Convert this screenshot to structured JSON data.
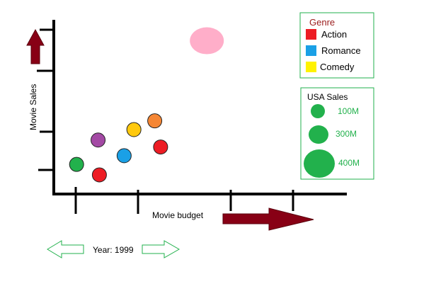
{
  "chart_data": {
    "type": "scatter",
    "title": "",
    "xlabel": "Movie budget",
    "ylabel": "Movie Sales",
    "xlim": [
      0,
      4.5
    ],
    "ylim": [
      0,
      5
    ],
    "points": [
      {
        "x": 0.35,
        "y": 0.85,
        "color": "#22b14c",
        "size": "small"
      },
      {
        "x": 0.7,
        "y": 0.55,
        "color": "#ed1c24",
        "size": "small"
      },
      {
        "x": 0.68,
        "y": 1.55,
        "color": "#a349a4",
        "size": "small"
      },
      {
        "x": 1.08,
        "y": 1.1,
        "color": "#1aa0e6",
        "size": "small"
      },
      {
        "x": 1.23,
        "y": 1.85,
        "color": "#ffc90e",
        "size": "small"
      },
      {
        "x": 1.55,
        "y": 2.1,
        "color": "#f58634",
        "size": "small"
      },
      {
        "x": 1.64,
        "y": 1.35,
        "color": "#ed1c24",
        "size": "small"
      },
      {
        "x": 2.35,
        "y": 4.4,
        "color": "#ffaec9",
        "size": "large"
      }
    ],
    "color_legend": {
      "title": "Genre",
      "items": [
        {
          "label": "Action",
          "color": "#ed1c24"
        },
        {
          "label": "Romance",
          "color": "#1aa0e6"
        },
        {
          "label": "Comedy",
          "color": "#fff200"
        }
      ]
    },
    "size_legend": {
      "title": "USA Sales",
      "items": [
        {
          "label": "100M",
          "size": "small"
        },
        {
          "label": "300M",
          "size": "medium"
        },
        {
          "label": "400M",
          "size": "large"
        }
      ],
      "color": "#22b14c"
    }
  },
  "year_control": {
    "label": "Year: 1999",
    "arrow_color": "#22b14c"
  },
  "colors": {
    "axis": "#000000",
    "axis_arrow": "#880015",
    "legend_border": "#22b14c"
  }
}
